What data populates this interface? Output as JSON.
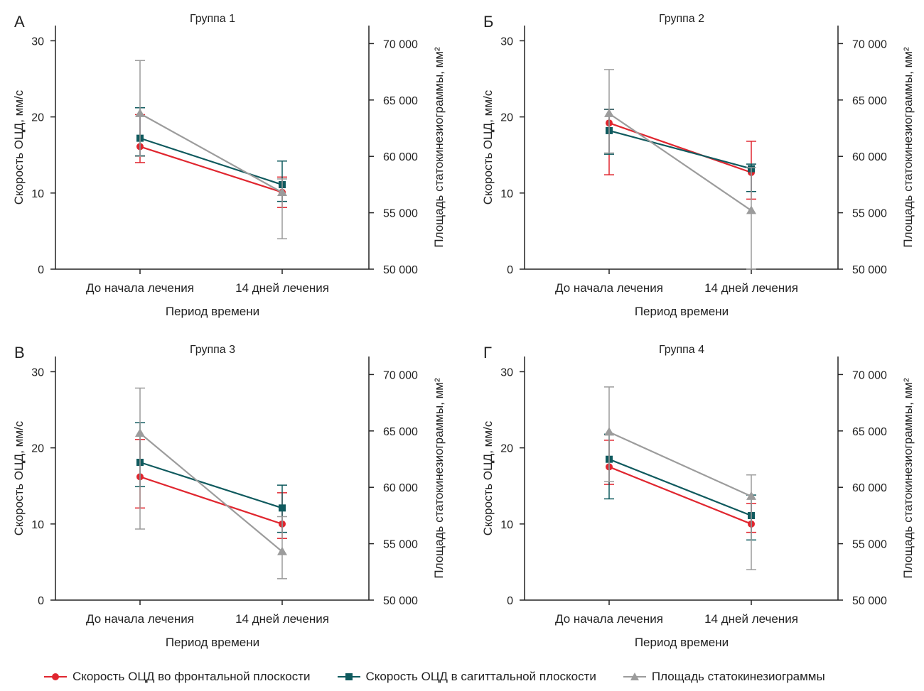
{
  "series_styles": [
    {
      "name": "Скорость ОЦД во фронтальной плоскости",
      "color": "#e0262f",
      "marker": "circle",
      "axis": "left"
    },
    {
      "name": "Скорость ОЦД в сагиттальной плоскости",
      "color": "#0f5a5e",
      "marker": "square",
      "axis": "left"
    },
    {
      "name": "Площадь статокинезиограммы",
      "color": "#9c9c9c",
      "marker": "triangle",
      "axis": "right"
    }
  ],
  "chart_data": [
    {
      "type": "line",
      "panel_letter": "А",
      "title": "Группа 1",
      "categories": [
        "До начала лечения",
        "14 дней лечения"
      ],
      "xlabel": "Период времени",
      "ylabel": "Скорость ОЦД, мм/с",
      "y2label": "Площадь статокинезиограммы, мм²",
      "ylim": [
        0,
        32
      ],
      "y2lim": [
        50000,
        71600
      ],
      "yticks": [
        0,
        10,
        20,
        30
      ],
      "yticklabels": [
        "0",
        "10",
        "20",
        "30"
      ],
      "y2ticks": [
        50000,
        55000,
        60000,
        65000,
        70000
      ],
      "y2ticklabels": [
        "50 000",
        "55 000",
        "60 000",
        "65 000",
        "70 000"
      ],
      "series": [
        {
          "name": "Скорость ОЦД во фронтальной плоскости",
          "axis": "left",
          "values": [
            16.1,
            10.1
          ],
          "errors": [
            [
              14.0,
              20.3
            ],
            [
              8.1,
              12.1
            ]
          ]
        },
        {
          "name": "Скорость ОЦД в сагиттальной плоскости",
          "axis": "left",
          "values": [
            17.2,
            11.1
          ],
          "errors": [
            [
              14.9,
              21.2
            ],
            [
              8.9,
              14.2
            ]
          ]
        },
        {
          "name": "Площадь статокинезиограммы",
          "axis": "right",
          "values": [
            63800,
            56800
          ],
          "errors": [
            [
              60000,
              68500
            ],
            [
              52700,
              58000
            ]
          ]
        }
      ]
    },
    {
      "type": "line",
      "panel_letter": "Б",
      "title": "Группа 2",
      "categories": [
        "До начала лечения",
        "14 дней лечения"
      ],
      "xlabel": "Период времени",
      "ylabel": "Скорость ОЦД, мм/с",
      "y2label": "Площадь статокинезиограммы, мм²",
      "ylim": [
        0,
        32
      ],
      "y2lim": [
        50000,
        71600
      ],
      "yticks": [
        0,
        10,
        20,
        30
      ],
      "yticklabels": [
        "0",
        "10",
        "20",
        "30"
      ],
      "y2ticks": [
        50000,
        55000,
        60000,
        65000,
        70000
      ],
      "y2ticklabels": [
        "50 000",
        "55 000",
        "60 000",
        "65 000",
        "70 000"
      ],
      "series": [
        {
          "name": "Скорость ОЦД во фронтальной плоскости",
          "axis": "left",
          "values": [
            19.2,
            12.7
          ],
          "errors": [
            [
              12.4,
              21.0
            ],
            [
              9.2,
              16.8
            ]
          ]
        },
        {
          "name": "Скорость ОЦД в сагиттальной плоскости",
          "axis": "left",
          "values": [
            18.2,
            13.2
          ],
          "errors": [
            [
              15.1,
              21.0
            ],
            [
              10.2,
              13.8
            ]
          ]
        },
        {
          "name": "Площадь статокинезиограммы",
          "axis": "right",
          "values": [
            63800,
            55200
          ],
          "errors": [
            [
              60300,
              67700
            ],
            [
              50000,
              59000
            ]
          ]
        }
      ]
    },
    {
      "type": "line",
      "panel_letter": "В",
      "title": "Группа 3",
      "categories": [
        "До начала лечения",
        "14 дней лечения"
      ],
      "xlabel": "Период времени",
      "ylabel": "Скорость ОЦД, мм/с",
      "y2label": "Площадь статокинезиограммы, мм²",
      "ylim": [
        0,
        32
      ],
      "y2lim": [
        50000,
        71600
      ],
      "yticks": [
        0,
        10,
        20,
        30
      ],
      "yticklabels": [
        "0",
        "10",
        "20",
        "30"
      ],
      "y2ticks": [
        50000,
        55000,
        60000,
        65000,
        70000
      ],
      "y2ticklabels": [
        "50 000",
        "55 000",
        "60 000",
        "65 000",
        "70 000"
      ],
      "series": [
        {
          "name": "Скорость ОЦД во фронтальной плоскости",
          "axis": "left",
          "values": [
            16.2,
            10.0
          ],
          "errors": [
            [
              12.1,
              21.1
            ],
            [
              8.1,
              14.1
            ]
          ]
        },
        {
          "name": "Скорость ОЦД в сагиттальной плоскости",
          "axis": "left",
          "values": [
            18.1,
            12.1
          ],
          "errors": [
            [
              14.9,
              23.3
            ],
            [
              8.9,
              15.1
            ]
          ]
        },
        {
          "name": "Площадь статокинезиограммы",
          "axis": "right",
          "values": [
            64800,
            54300
          ],
          "errors": [
            [
              56300,
              68800
            ],
            [
              51900,
              57400
            ]
          ]
        }
      ]
    },
    {
      "type": "line",
      "panel_letter": "Г",
      "title": "Группа 4",
      "categories": [
        "До начала лечения",
        "14 дней лечения"
      ],
      "xlabel": "Период времени",
      "ylabel": "Скорость ОЦД, мм/с",
      "y2label": "Площадь статокинезиограммы, мм²",
      "ylim": [
        0,
        32
      ],
      "y2lim": [
        50000,
        71600
      ],
      "yticks": [
        0,
        10,
        20,
        30
      ],
      "yticklabels": [
        "0",
        "10",
        "20",
        "30"
      ],
      "y2ticks": [
        50000,
        55000,
        60000,
        65000,
        70000
      ],
      "y2ticklabels": [
        "50 000",
        "55 000",
        "60 000",
        "65 000",
        "70 000"
      ],
      "series": [
        {
          "name": "Скорость ОЦД во фронтальной плоскости",
          "axis": "left",
          "values": [
            17.5,
            10.0
          ],
          "errors": [
            [
              15.2,
              21.0
            ],
            [
              8.9,
              12.7
            ]
          ]
        },
        {
          "name": "Скорость ОЦД в сагиттальной плоскости",
          "axis": "left",
          "values": [
            18.5,
            11.1
          ],
          "errors": [
            [
              13.3,
              21.8
            ],
            [
              7.9,
              13.8
            ]
          ]
        },
        {
          "name": "Площадь статокинезиограммы",
          "axis": "right",
          "values": [
            64900,
            59200
          ],
          "errors": [
            [
              60500,
              68900
            ],
            [
              52700,
              61100
            ]
          ]
        }
      ]
    }
  ],
  "legend": {
    "items": [
      "Скорость ОЦД во фронтальной плоскости",
      "Скорость ОЦД в сагиттальной плоскости",
      "Площадь статокинезиограммы"
    ]
  }
}
